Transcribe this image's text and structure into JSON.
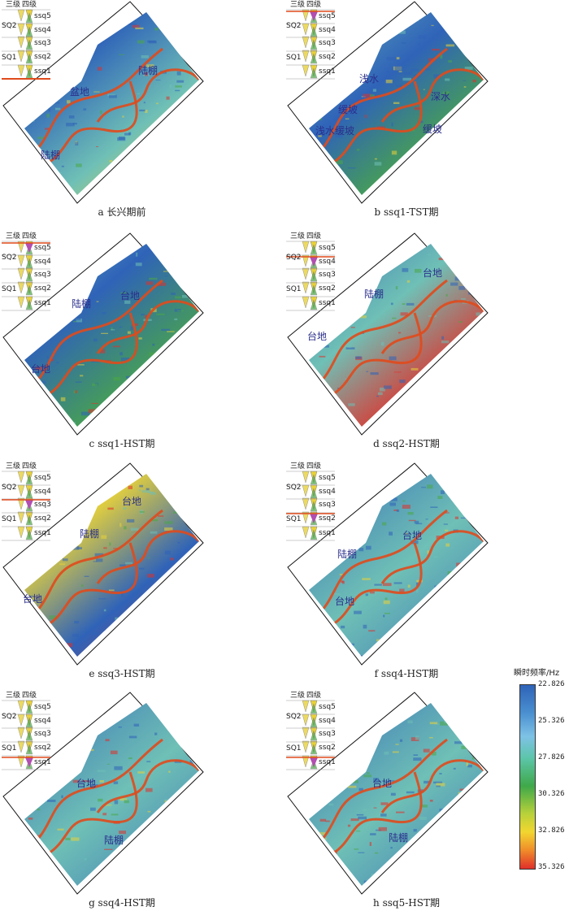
{
  "figure": {
    "colors": {
      "deep": "#2f63b8",
      "mid": "#6fc0b6",
      "green": "#4aa846",
      "yellow": "#e8d23a",
      "red": "#e0302a",
      "boundary": "#e04a1c",
      "label": "#2b2f8c",
      "highlight": "#b24fb0"
    },
    "sequence_labels": {
      "third_order": "三级",
      "fourth_order": "四级",
      "sq2": "SQ2",
      "sq1": "SQ1",
      "ssq5": "ssq5",
      "ssq4": "ssq4",
      "ssq3": "ssq3",
      "ssq2": "ssq2",
      "ssq1": "ssq1"
    },
    "panels": [
      {
        "id": "a",
        "caption": "a 长兴期前",
        "labels": [
          "盆地",
          "陆棚",
          "陆棚"
        ]
      },
      {
        "id": "b",
        "caption": "b ssq1-TST期",
        "labels": [
          "浅水缓坡",
          "缓坡",
          "浅水",
          "深水",
          "缓坡"
        ]
      },
      {
        "id": "c",
        "caption": "c ssq1-HST期",
        "labels": [
          "陆棚",
          "台地",
          "台地"
        ]
      },
      {
        "id": "d",
        "caption": "d ssq2-HST期",
        "labels": [
          "台地",
          "陆棚",
          "台地"
        ]
      },
      {
        "id": "e",
        "caption": "e ssq3-HST期",
        "labels": [
          "台地",
          "陆棚",
          "台地"
        ]
      },
      {
        "id": "f",
        "caption": "f ssq4-HST期",
        "labels": [
          "台地",
          "陆棚",
          "台地"
        ]
      },
      {
        "id": "g",
        "caption": "g ssq4-HST期",
        "labels": [
          "台地",
          "陆棚"
        ]
      },
      {
        "id": "h",
        "caption": "h ssq5-HST期",
        "labels": [
          "台地",
          "陆棚"
        ]
      }
    ],
    "legend": {
      "title": "瞬时频率/Hz",
      "ticks": [
        "22.826",
        "25.326",
        "27.826",
        "30.326",
        "32.826",
        "35.326"
      ]
    }
  }
}
